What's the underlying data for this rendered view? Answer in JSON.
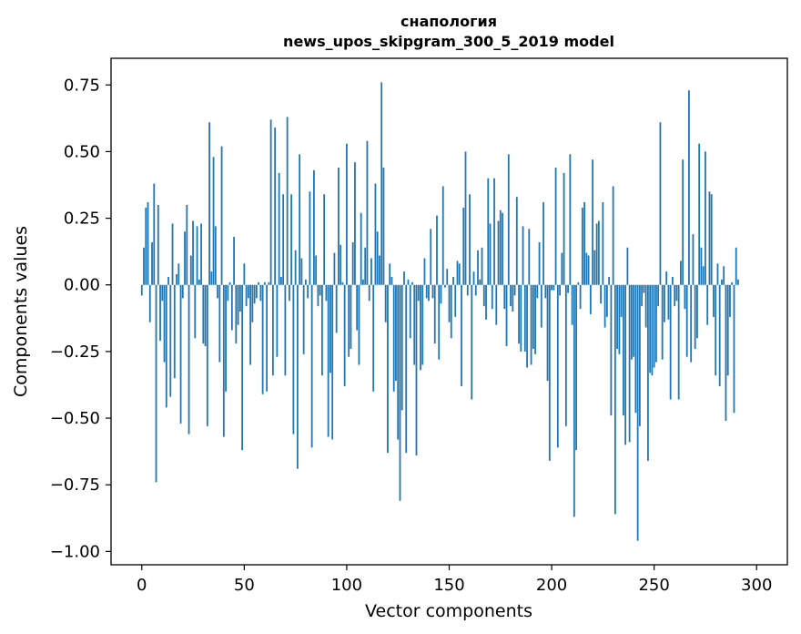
{
  "chart_data": {
    "type": "bar",
    "title": "снапология",
    "subtitle": "news_upos_skipgram_300_5_2019 model",
    "xlabel": "Vector components",
    "ylabel": "Components values",
    "xlim": [
      -15,
      315
    ],
    "ylim": [
      -1.05,
      0.85
    ],
    "xticks": [
      0,
      50,
      100,
      150,
      200,
      250,
      300
    ],
    "xtick_labels": [
      "0",
      "50",
      "100",
      "150",
      "200",
      "250",
      "300"
    ],
    "yticks": [
      -1.0,
      -0.75,
      -0.5,
      -0.25,
      0.0,
      0.25,
      0.5,
      0.75
    ],
    "ytick_labels": [
      "−1.00",
      "−0.75",
      "−0.50",
      "−0.25",
      "0.00",
      "0.25",
      "0.50",
      "0.75"
    ],
    "grid": false,
    "bar_color": "#1f77b4",
    "values": [
      -0.04,
      0.14,
      0.29,
      0.31,
      -0.14,
      0.16,
      0.38,
      -0.74,
      0.3,
      -0.21,
      -0.06,
      -0.29,
      -0.46,
      0.03,
      -0.42,
      0.23,
      -0.35,
      0.04,
      0.08,
      -0.52,
      -0.05,
      0.2,
      0.3,
      -0.56,
      0.11,
      0.24,
      -0.2,
      0.22,
      0.02,
      0.23,
      -0.22,
      -0.23,
      -0.53,
      0.61,
      0.05,
      0.48,
      0.22,
      -0.05,
      -0.29,
      0.52,
      -0.57,
      -0.4,
      -0.06,
      0.01,
      -0.17,
      0.18,
      -0.22,
      -0.15,
      -0.1,
      -0.62,
      0.08,
      -0.08,
      -0.05,
      -0.3,
      -0.14,
      -0.07,
      -0.05,
      0.01,
      -0.06,
      -0.41,
      0.01,
      -0.4,
      0.01,
      0.62,
      -0.34,
      0.59,
      -0.27,
      0.42,
      0.03,
      0.34,
      -0.34,
      0.63,
      -0.06,
      0.34,
      -0.56,
      0.13,
      -0.69,
      0.49,
      0.1,
      -0.26,
      0.02,
      -0.05,
      0.35,
      -0.61,
      0.43,
      0.11,
      -0.08,
      -0.04,
      -0.34,
      0.34,
      -0.06,
      -0.57,
      -0.33,
      -0.58,
      0.12,
      -0.18,
      0.44,
      0.15,
      0.01,
      -0.38,
      0.53,
      -0.27,
      -0.24,
      0.16,
      0.46,
      -0.17,
      -0.3,
      0.27,
      0.02,
      0.14,
      0.54,
      -0.06,
      0.1,
      -0.4,
      0.38,
      0.2,
      0.11,
      0.76,
      0.44,
      -0.14,
      -0.63,
      0.08,
      0.03,
      -0.4,
      -0.36,
      -0.58,
      -0.81,
      -0.47,
      0.05,
      -0.63,
      0.02,
      -0.2,
      0.01,
      -0.3,
      -0.64,
      -0.06,
      -0.32,
      -0.3,
      0.1,
      -0.05,
      -0.06,
      0.21,
      -0.05,
      -0.22,
      0.26,
      -0.28,
      -0.07,
      0.37,
      -0.01,
      0.06,
      -0.14,
      -0.2,
      0.03,
      -0.12,
      0.09,
      0.08,
      -0.38,
      0.29,
      0.5,
      -0.04,
      0.34,
      -0.43,
      0.05,
      -0.04,
      0.13,
      0.02,
      0.14,
      -0.08,
      -0.13,
      0.4,
      0.23,
      -0.09,
      0.4,
      -0.15,
      0.24,
      0.28,
      0.27,
      -0.09,
      -0.23,
      0.49,
      -0.08,
      -0.1,
      -0.04,
      0.33,
      -0.22,
      -0.25,
      0.22,
      -0.25,
      -0.31,
      0.21,
      -0.3,
      -0.24,
      -0.26,
      -0.05,
      0.16,
      -0.16,
      0.31,
      -0.05,
      -0.36,
      -0.66,
      -0.02,
      -0.02,
      0.44,
      -0.61,
      -0.04,
      0.12,
      0.42,
      -0.53,
      -0.03,
      0.49,
      -0.15,
      -0.87,
      -0.62,
      0.01,
      -0.09,
      0.29,
      0.31,
      0.12,
      0.11,
      -0.11,
      0.47,
      0.13,
      0.23,
      0.24,
      -0.07,
      0.31,
      -0.16,
      -0.12,
      0.03,
      -0.49,
      0.37,
      -0.86,
      -0.24,
      -0.26,
      -0.12,
      -0.49,
      -0.6,
      0.14,
      -0.59,
      -0.28,
      -0.27,
      -0.48,
      -0.96,
      -0.53,
      -0.08,
      -0.03,
      -0.16,
      -0.66,
      -0.33,
      -0.34,
      -0.31,
      -0.29,
      -0.08,
      0.61,
      -0.28,
      -0.14,
      0.05,
      -0.13,
      -0.43,
      0.03,
      -0.08,
      -0.06,
      -0.43,
      0.09,
      0.47,
      -0.09,
      -0.27,
      0.73,
      -0.29,
      0.19,
      -0.24,
      -0.2,
      0.53,
      0.14,
      0.07,
      0.5,
      -0.15,
      0.35,
      0.34,
      -0.12,
      -0.34,
      0.08,
      -0.38,
      0.02,
      0.07,
      -0.51,
      -0.34,
      -0.12,
      0.01,
      -0.48,
      0.14,
      0.02
    ]
  }
}
